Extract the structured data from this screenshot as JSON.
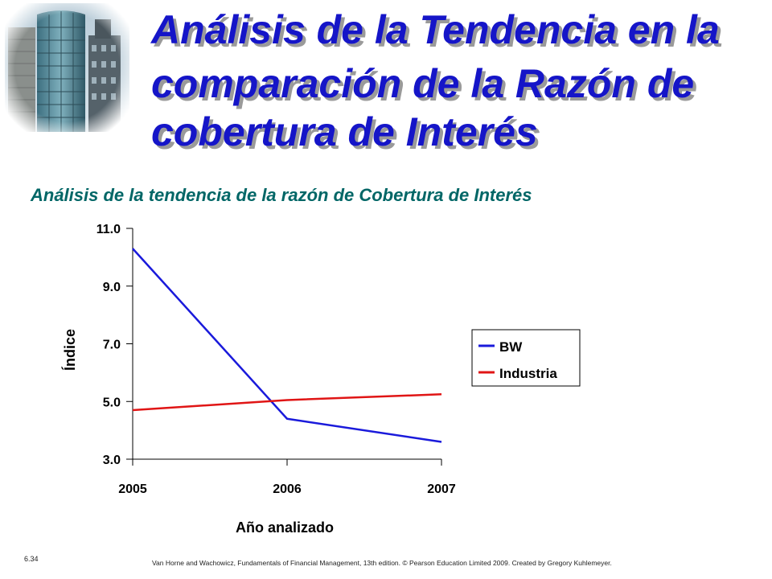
{
  "slide": {
    "title_lines": [
      "Análisis de la Tendencia en la",
      "comparación de la Razón de",
      "cobertura de Interés"
    ],
    "page_number": "6.34",
    "credit": "Van Horne and Wachowicz, Fundamentals of Financial Management, 13th edition. © Pearson Education Limited 2009. Created by Gregory Kuhlemeyer.",
    "image": "office-buildings-photo"
  },
  "colors": {
    "title": "#1515c8",
    "chart_title": "#006666",
    "axis_text": "#000000",
    "series_bw": "#1a1adb",
    "series_industria": "#e01515"
  },
  "chart_data": {
    "type": "line",
    "title": "Análisis de la tendencia de la razón de Cobertura de Interés",
    "xlabel": "Año analizado",
    "ylabel": "Índice",
    "categories": [
      "2005",
      "2006",
      "2007"
    ],
    "y_ticks": [
      "3.0",
      "5.0",
      "7.0",
      "9.0",
      "11.0"
    ],
    "ylim": [
      3.0,
      11.0
    ],
    "grid": false,
    "legend_position": "right",
    "series": [
      {
        "name": "BW",
        "values": [
          10.3,
          4.4,
          3.6
        ],
        "color": "#1a1adb"
      },
      {
        "name": "Industria",
        "values": [
          4.7,
          5.05,
          5.25
        ],
        "color": "#e01515"
      }
    ]
  }
}
